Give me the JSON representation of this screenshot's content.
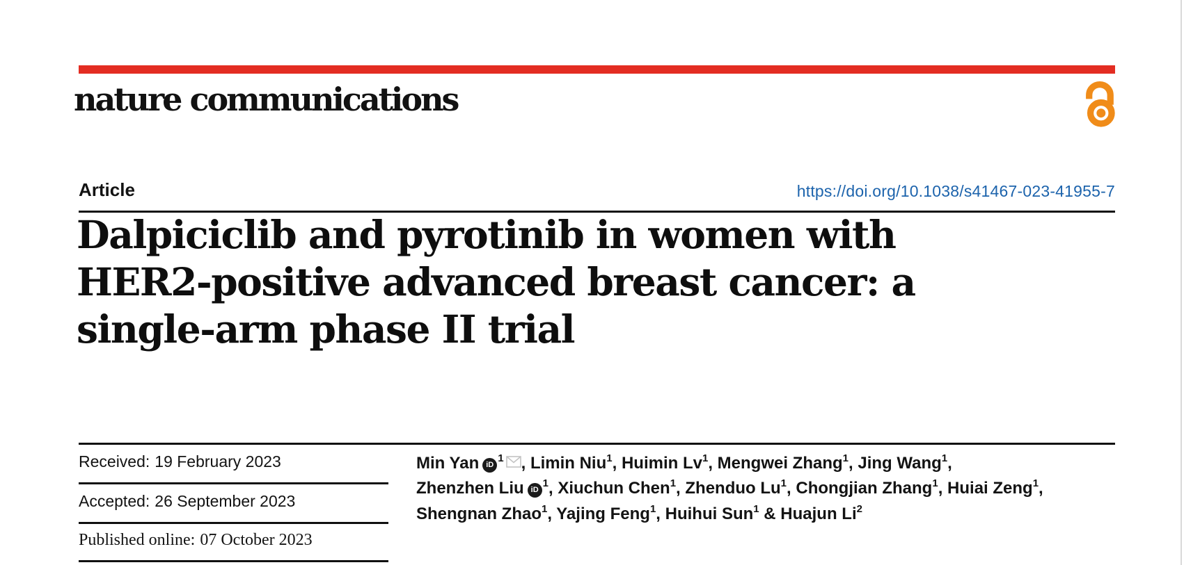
{
  "brand": {
    "journal_name": "nature communications",
    "bar_color": "#e32d22",
    "open_access_color": "#f08c19",
    "open_access_icon": "open-access-padlock"
  },
  "article": {
    "type_label": "Article",
    "doi_link": "https://doi.org/10.1038/s41467-023-41955-7",
    "doi_color": "#1c63ac",
    "title_lines": [
      "Dalpiciclib and pyrotinib in women with",
      "HER2-positive advanced breast cancer: a",
      "single-arm phase II trial"
    ]
  },
  "dates": {
    "received": {
      "label": "Received:",
      "value": "19 February 2023"
    },
    "accepted": {
      "label": "Accepted:",
      "value": "26 September 2023"
    },
    "published": {
      "label": "Published online:",
      "value": "07 October 2023"
    }
  },
  "authors": {
    "orcid_icon_text": "iD",
    "lines": [
      [
        {
          "name": "Min Yan",
          "orcid": true,
          "affil": "1",
          "email": true,
          "sep": ", "
        },
        {
          "name": "Limin Niu",
          "affil": "1",
          "sep": ", "
        },
        {
          "name": "Huimin Lv",
          "affil": "1",
          "sep": ", "
        },
        {
          "name": "Mengwei Zhang",
          "affil": "1",
          "sep": ", "
        },
        {
          "name": "Jing Wang",
          "affil": "1",
          "sep": ","
        }
      ],
      [
        {
          "name": "Zhenzhen Liu",
          "orcid": true,
          "affil": "1",
          "sep": ", "
        },
        {
          "name": "Xiuchun Chen",
          "affil": "1",
          "sep": ", "
        },
        {
          "name": "Zhenduo Lu",
          "affil": "1",
          "sep": ", "
        },
        {
          "name": "Chongjian Zhang",
          "affil": "1",
          "sep": ", "
        },
        {
          "name": "Huiai Zeng",
          "affil": "1",
          "sep": ","
        }
      ],
      [
        {
          "name": "Shengnan Zhao",
          "affil": "1",
          "sep": ", "
        },
        {
          "name": "Yajing Feng",
          "affil": "1",
          "sep": ", "
        },
        {
          "name": "Huihui Sun",
          "affil": "1",
          "sep": " & "
        },
        {
          "name": "Huajun Li",
          "affil": "2",
          "sep": ""
        }
      ]
    ]
  }
}
